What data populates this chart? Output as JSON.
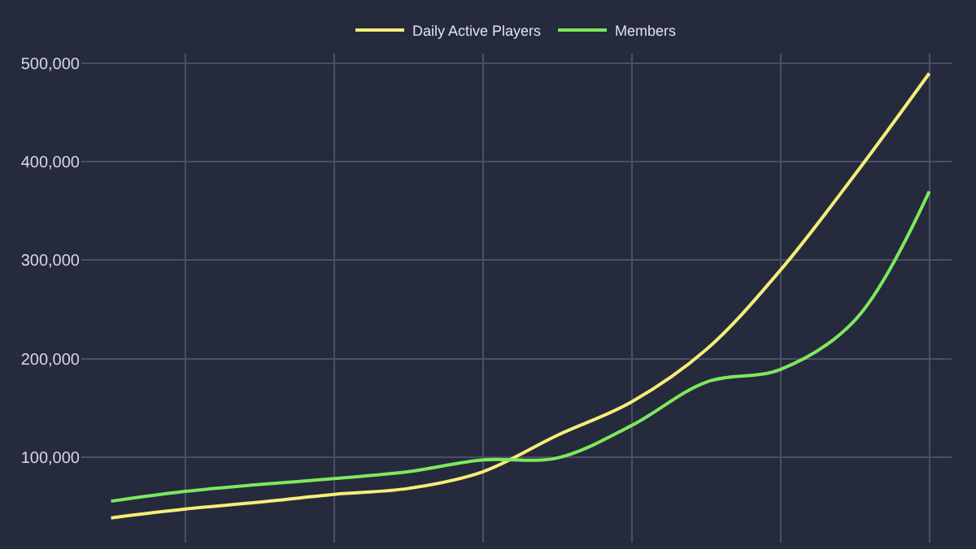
{
  "chart_data": {
    "type": "line",
    "categories": [
      null,
      null,
      null,
      null,
      null,
      null,
      null,
      null,
      null,
      null,
      null,
      null
    ],
    "series": [
      {
        "name": "Daily Active Players",
        "color": "#f4ee7a",
        "values": [
          38000,
          47000,
          54000,
          62000,
          68000,
          85000,
          122000,
          156000,
          209000,
          290000,
          387000,
          490000
        ]
      },
      {
        "name": "Members",
        "color": "#7ee85e",
        "values": [
          55000,
          65000,
          72000,
          78000,
          85000,
          97000,
          99000,
          132000,
          176000,
          189000,
          239000,
          370000
        ]
      }
    ],
    "ylim": [
      13000,
      510000
    ],
    "yticks": [
      {
        "value": 100000,
        "label": "100,000"
      },
      {
        "value": 200000,
        "label": "200,000"
      },
      {
        "value": 300000,
        "label": "300,000"
      },
      {
        "value": 400000,
        "label": "400,000"
      },
      {
        "value": 500000,
        "label": "500,000"
      }
    ],
    "grid": true,
    "legend": "top",
    "marker": "none",
    "line_style": "solid",
    "tick_labels": "y"
  }
}
